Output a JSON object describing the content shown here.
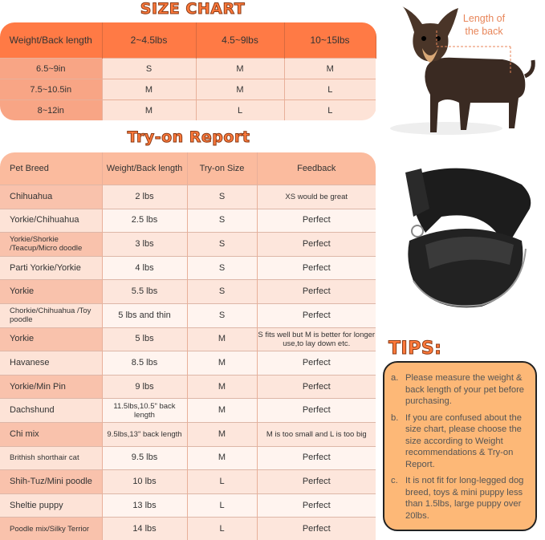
{
  "size_chart": {
    "title": "SIZE CHART",
    "headers": [
      "Weight/Back length",
      "2~4.5lbs",
      "4.5~9lbs",
      "10~15lbs"
    ],
    "rows": [
      [
        "6.5~9in",
        "S",
        "M",
        "M"
      ],
      [
        "7.5~10.5in",
        "M",
        "M",
        "L"
      ],
      [
        "8~12in",
        "M",
        "L",
        "L"
      ]
    ]
  },
  "try_on": {
    "title": "Try-on Report",
    "headers": [
      "Pet Breed",
      "Weight/Back length",
      "Try-on Size",
      "Feedback"
    ],
    "rows": [
      [
        "Chihuahua",
        "2 lbs",
        "S",
        "XS would be great"
      ],
      [
        "Yorkie/Chihuahua",
        "2.5 lbs",
        "S",
        "Perfect"
      ],
      [
        "Yorkie/Shorkie /Teacup/Micro doodle",
        "3 lbs",
        "S",
        "Perfect"
      ],
      [
        "Parti Yorkie/Yorkie",
        "4 lbs",
        "S",
        "Perfect"
      ],
      [
        "Yorkie",
        "5.5 lbs",
        "S",
        "Perfect"
      ],
      [
        "Chorkie/Chihuahua /Toy poodle",
        "5 lbs and thin",
        "S",
        "Perfect"
      ],
      [
        "Yorkie",
        "5 lbs",
        "M",
        "S fits well but M is better for longer use,to lay down etc."
      ],
      [
        "Havanese",
        "8.5 lbs",
        "M",
        "Perfect"
      ],
      [
        "Yorkie/Min Pin",
        "9 lbs",
        "M",
        "Perfect"
      ],
      [
        "Dachshund",
        "11.5lbs,10.5\" back length",
        "M",
        "Perfect"
      ],
      [
        "Chi mix",
        "9.5lbs,13\" back length",
        "M",
        "M is too small and L is too big"
      ],
      [
        "Brithish shorthair cat",
        "9.5 lbs",
        "M",
        "Perfect"
      ],
      [
        "Shih-Tuz/Mini poodle",
        "10 lbs",
        "L",
        "Perfect"
      ],
      [
        "Sheltie puppy",
        "13 lbs",
        "L",
        "Perfect"
      ],
      [
        "Poodle mix/Silky Terrior",
        "14 lbs",
        "L",
        "Perfect"
      ]
    ]
  },
  "dog_image": {
    "label": "Length of the back"
  },
  "tips": {
    "title": "TIPS:",
    "items": [
      {
        "letter": "a.",
        "text": "Please measure the weight & back length of your pet before purchasing."
      },
      {
        "letter": "b.",
        "text": "If you are confused about the size chart, please choose the size according to Weight recommendations & Try-on Report."
      },
      {
        "letter": "c.",
        "text": "It is not fit for long-legged dog breed, toys & mini puppy less than 1.5lbs, large puppy over 20lbs."
      }
    ]
  },
  "colors": {
    "accent": "#ff7a45",
    "tips_bg": "#fdb877"
  }
}
